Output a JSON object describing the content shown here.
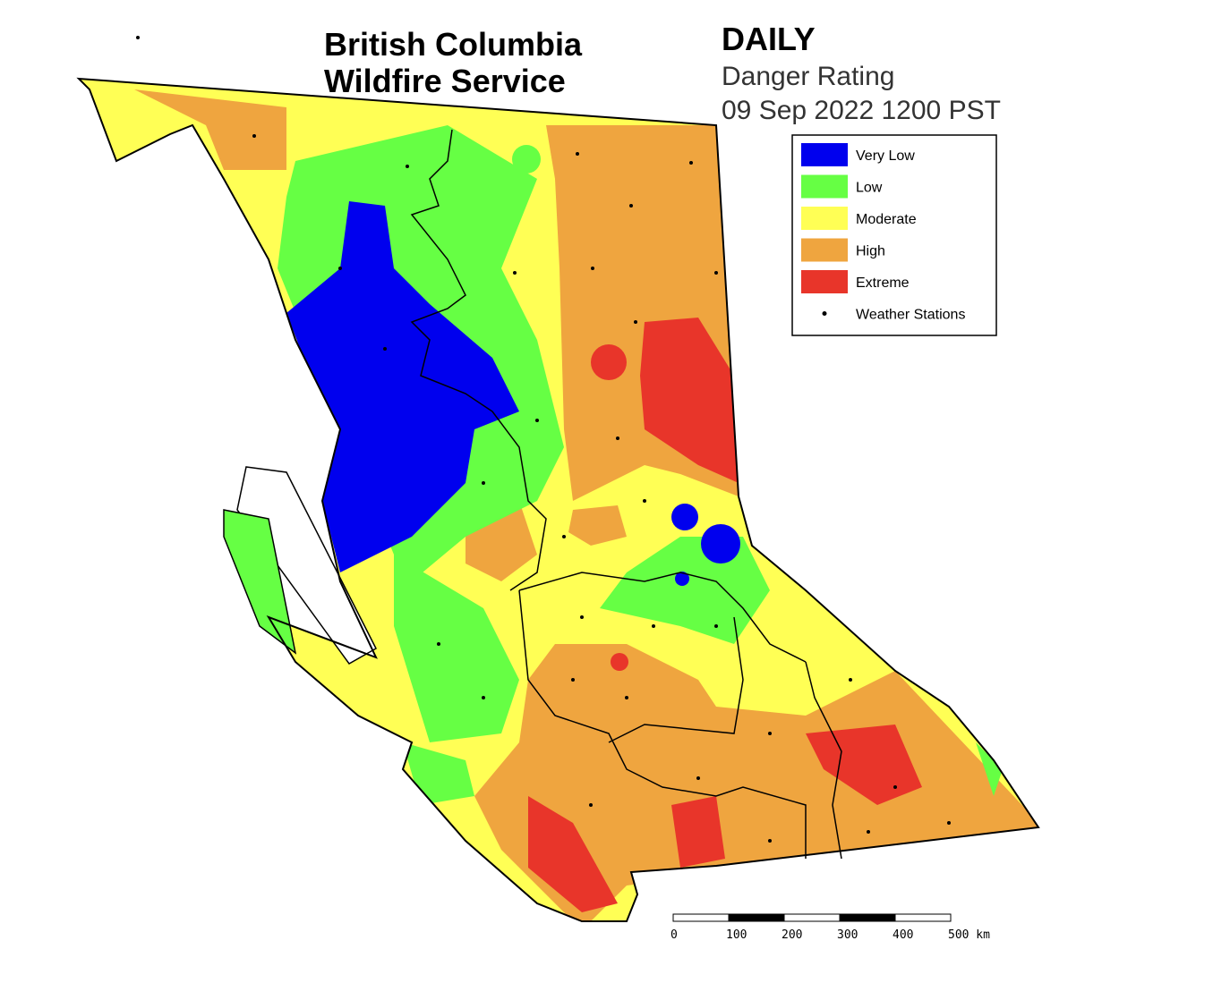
{
  "header": {
    "title_lines": [
      "British Columbia",
      "Wildfire Service"
    ],
    "period": "DAILY",
    "product": "Danger Rating",
    "timestamp": "09 Sep 2022 1200 PST"
  },
  "legend": [
    {
      "label": "Very Low",
      "color": "#0000ee"
    },
    {
      "label": "Low",
      "color": "#66ff44"
    },
    {
      "label": "Moderate",
      "color": "#ffff55"
    },
    {
      "label": "High",
      "color": "#efa53f"
    },
    {
      "label": "Extreme",
      "color": "#e8352a"
    },
    {
      "label": "Weather Stations"
    }
  ],
  "scale_bar": {
    "labels": [
      "0",
      "100",
      "200",
      "300",
      "400",
      "500 km"
    ]
  }
}
